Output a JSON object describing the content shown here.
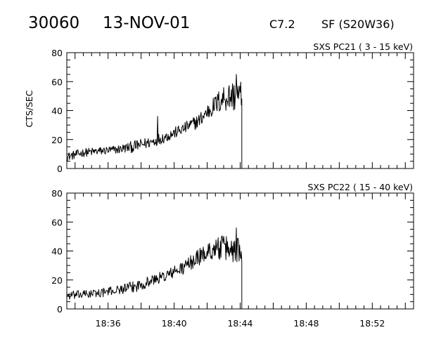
{
  "header": {
    "event_id": "30060",
    "date": "13-NOV-01",
    "flare_class": "C7.2",
    "location": "SF (S20W36)"
  },
  "chart_data": [
    {
      "type": "line",
      "title": "SXS PC21  (  3 - 15 keV)",
      "xlabel": "",
      "ylabel": "CTS/SEC",
      "ylim": [
        0,
        80
      ],
      "yticks": [
        0,
        20,
        40,
        60,
        80
      ],
      "xlim": [
        "18:33:30",
        "18:54:30"
      ],
      "xticks": [
        "18:36",
        "18:40",
        "18:44",
        "18:48",
        "18:52"
      ],
      "grid": false,
      "series": [
        {
          "x": [
            "18:33:30",
            "18:34:30",
            "18:35:30",
            "18:36:30",
            "18:37:30",
            "18:38:30",
            "18:39:00",
            "18:39:30",
            "18:40:30",
            "18:41:30",
            "18:42:00",
            "18:42:30",
            "18:43:00",
            "18:43:30",
            "18:44:00"
          ],
          "values": [
            8,
            11,
            12,
            13,
            15,
            18,
            20,
            22,
            27,
            33,
            39,
            44,
            49,
            50,
            50
          ],
          "noise": [
            3,
            3,
            3,
            3,
            4,
            4,
            4,
            4,
            4,
            5,
            6,
            7,
            10,
            11,
            11
          ],
          "spikes": [
            {
              "x": "18:39:00",
              "y": 36
            },
            {
              "x": "18:43:45",
              "y": 65
            }
          ],
          "drop_to_zero_at": "18:44:06"
        }
      ]
    },
    {
      "type": "line",
      "title": "SXS PC22  ( 15 - 40 keV)",
      "xlabel": "",
      "ylabel": "",
      "ylim": [
        0,
        80
      ],
      "yticks": [
        0,
        20,
        40,
        60,
        80
      ],
      "xlim": [
        "18:33:30",
        "18:54:30"
      ],
      "xticks": [
        "18:36",
        "18:40",
        "18:44",
        "18:48",
        "18:52"
      ],
      "grid": false,
      "series": [
        {
          "x": [
            "18:33:30",
            "18:34:30",
            "18:35:30",
            "18:36:30",
            "18:37:30",
            "18:38:30",
            "18:39:30",
            "18:40:30",
            "18:41:00",
            "18:41:30",
            "18:42:00",
            "18:42:30",
            "18:43:00",
            "18:43:30",
            "18:44:00"
          ],
          "values": [
            9,
            10,
            11,
            13,
            15,
            19,
            23,
            28,
            32,
            36,
            39,
            42,
            42,
            41,
            41
          ],
          "noise": [
            3,
            3,
            3,
            3,
            4,
            4,
            4,
            5,
            5,
            6,
            6,
            7,
            9,
            10,
            10
          ],
          "spikes": [
            {
              "x": "18:43:45",
              "y": 56
            }
          ],
          "drop_to_zero_at": "18:44:06"
        }
      ]
    }
  ]
}
